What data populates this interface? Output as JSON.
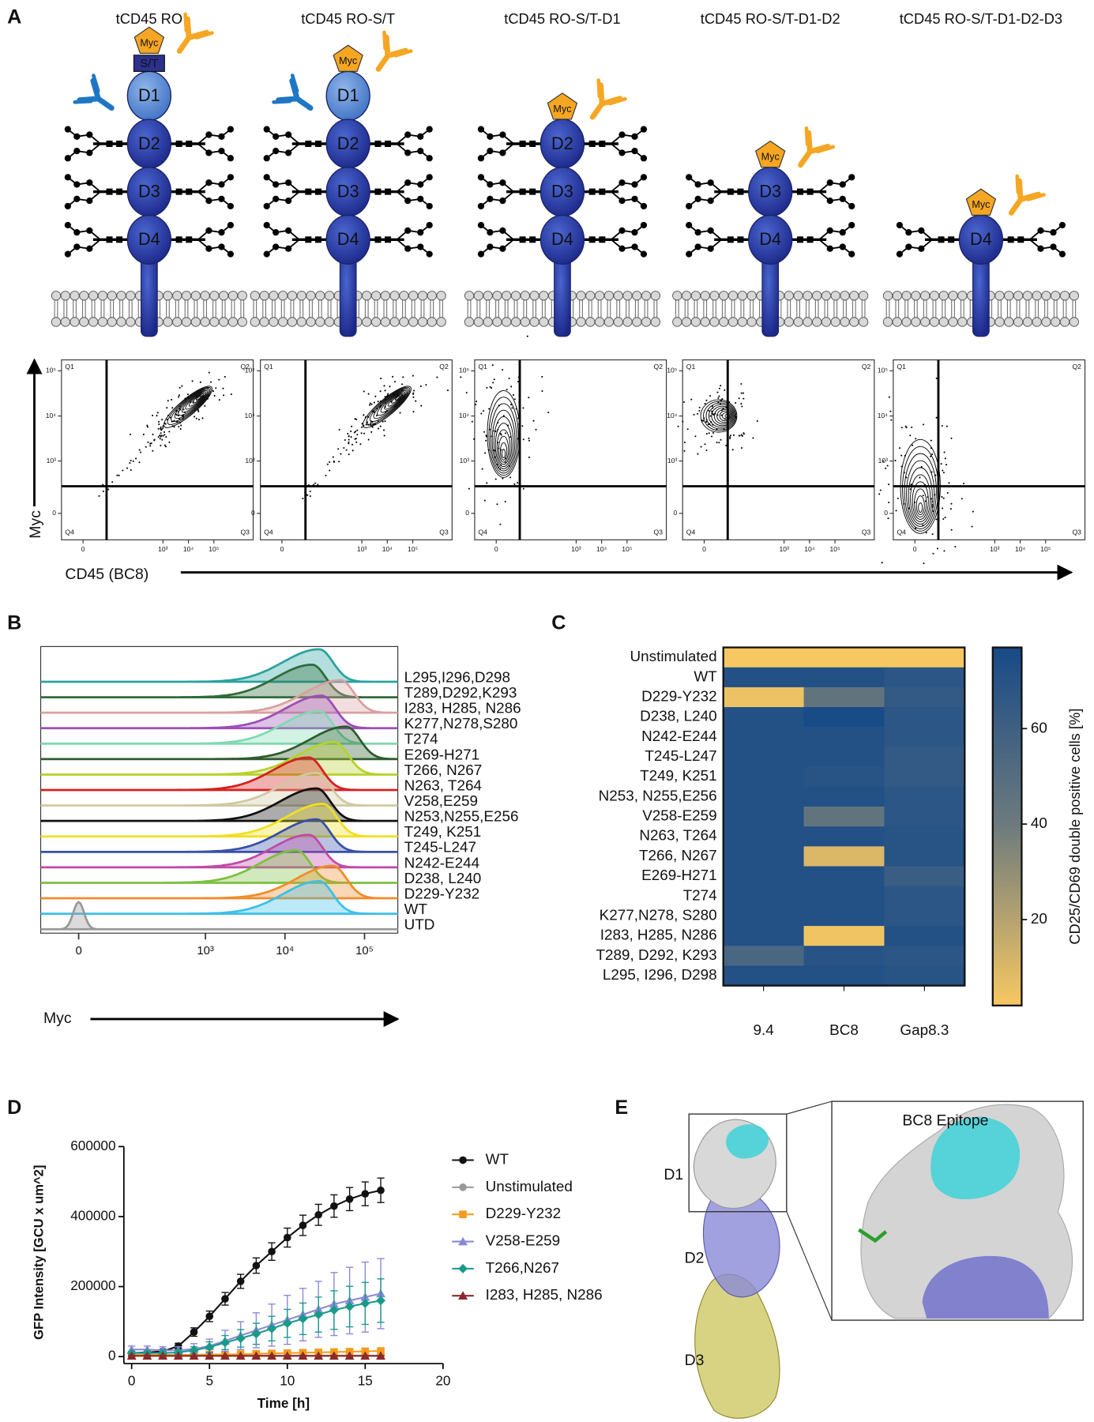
{
  "panel_labels": [
    "A",
    "B",
    "C",
    "D",
    "E"
  ],
  "panel_a": {
    "constructs": [
      {
        "title": "tCD45 RO",
        "tag": "Myc",
        "linker": "S/T",
        "domains": [
          "D1",
          "D2",
          "D3",
          "D4"
        ]
      },
      {
        "title": "tCD45 RO-S/T",
        "tag": "Myc",
        "domains": [
          "D1",
          "D2",
          "D3",
          "D4"
        ]
      },
      {
        "title": "tCD45 RO-S/T-D1",
        "tag": "Myc",
        "domains": [
          "D2",
          "D3",
          "D4"
        ]
      },
      {
        "title": "tCD45 RO-S/T-D1-D2",
        "tag": "Myc",
        "domains": [
          "D3",
          "D4"
        ]
      },
      {
        "title": "tCD45 RO-S/T-D1-D2-D3",
        "tag": "Myc",
        "domains": [
          "D4"
        ]
      }
    ],
    "flow": {
      "x_label": "CD45 (BC8)",
      "y_label": "Myc",
      "quadrants": [
        "Q1",
        "Q2",
        "Q3",
        "Q4"
      ],
      "xscale": "biexponential",
      "yscale": "biexponential",
      "xlim": [
        -5,
        3500000
      ],
      "ylim": [
        -250,
        175000
      ],
      "xticks": [
        0,
        {
          "value": 1000,
          "label": "10³"
        },
        {
          "value": 10000,
          "label": "10⁴"
        },
        {
          "value": 100000,
          "label": "10⁵"
        }
      ],
      "yticks": [
        0,
        {
          "value": 1000,
          "label": "10³"
        },
        {
          "value": 10000,
          "label": "10⁴"
        },
        {
          "value": 100000,
          "label": "10⁵"
        }
      ],
      "gate": {
        "x": 6,
        "y": 260
      }
    }
  },
  "chart_data": [
    {
      "type": "ridgeline",
      "x_label": "Myc",
      "xscale": "biexponential",
      "xlim": [
        -68,
        262144
      ],
      "xticks": [
        0,
        {
          "value": 1000,
          "label": "10³"
        },
        {
          "value": 10000,
          "label": "10⁴"
        },
        {
          "value": 100000,
          "label": "10⁵"
        }
      ],
      "series": [
        {
          "name": "L295,I296,D298",
          "color": "#2aa3a0",
          "mode": 27000
        },
        {
          "name": "T289,D292,K293",
          "color": "#2f6b3a",
          "mode": 22000
        },
        {
          "name": "I283, H285, N286",
          "color": "#d9a0a0",
          "mode": 50000
        },
        {
          "name": "K277,N278,S280",
          "color": "#9b4fb5",
          "mode": 29000
        },
        {
          "name": "T274",
          "color": "#7fd9b0",
          "mode": 27000
        },
        {
          "name": "E269-H271",
          "color": "#2e5c2e",
          "mode": 59000
        },
        {
          "name": "T266, N267",
          "color": "#b6d22a",
          "mode": 42000
        },
        {
          "name": "N263, T264",
          "color": "#d62020",
          "mode": 20000
        },
        {
          "name": "V258,E259",
          "color": "#cfc9a0",
          "mode": 25000
        },
        {
          "name": "N253,N255,E256",
          "color": "#111111",
          "mode": 25000
        },
        {
          "name": "T249, K251",
          "color": "#f0e020",
          "mode": 30000
        },
        {
          "name": "T245-L247",
          "color": "#3850a8",
          "mode": 25000
        },
        {
          "name": "N242-E244",
          "color": "#c04aa8",
          "mode": 20000
        },
        {
          "name": "D238, L240",
          "color": "#7cc040",
          "mode": 14000
        },
        {
          "name": "D229-Y232",
          "color": "#f08c2a",
          "mode": 40000
        },
        {
          "name": "WT",
          "color": "#3cc0e8",
          "mode": 27000
        },
        {
          "name": "UTD",
          "color": "#999999",
          "mode": 0
        }
      ]
    },
    {
      "type": "heatmap",
      "rows": [
        "Unstimulated",
        "WT",
        "D229-Y232",
        "D238, L240",
        "N242-E244",
        "T245-L247",
        "T249, K251",
        "N253, N255,E256",
        "V258-E259",
        "N263, T264",
        "T266, N267",
        "E269-H271",
        "T274",
        "K277,N278, S280",
        "I283, H285, N286",
        "T289, D292, K293",
        "L295, I296, D298"
      ],
      "columns": [
        "9.4",
        "BC8",
        "Gap8.3"
      ],
      "values": [
        [
          2,
          2,
          2
        ],
        [
          72,
          72,
          68
        ],
        [
          5,
          45,
          65
        ],
        [
          72,
          76,
          68
        ],
        [
          72,
          72,
          68
        ],
        [
          72,
          72,
          65
        ],
        [
          72,
          70,
          65
        ],
        [
          72,
          72,
          68
        ],
        [
          72,
          45,
          68
        ],
        [
          72,
          72,
          70
        ],
        [
          72,
          10,
          70
        ],
        [
          72,
          72,
          62
        ],
        [
          72,
          72,
          68
        ],
        [
          72,
          72,
          68
        ],
        [
          72,
          4,
          72
        ],
        [
          55,
          70,
          68
        ],
        [
          72,
          72,
          70
        ]
      ],
      "colorbar": {
        "label": "CD25/CD69 double positive cells [%]",
        "lim": [
          2,
          77
        ],
        "ticks": [
          20,
          40,
          60
        ]
      },
      "colors": [
        "#f7c862",
        "#6e7b7d",
        "#174a87"
      ]
    },
    {
      "type": "line",
      "x_label": "Time [h]",
      "y_label": "GFP Intensity [GCU x um^2]",
      "x": [
        0,
        1,
        2,
        3,
        4,
        5,
        6,
        7,
        8,
        9,
        10,
        11,
        12,
        13,
        14,
        15,
        16
      ],
      "xlim": [
        -0.5,
        20
      ],
      "xticks": [
        0,
        5,
        10,
        15,
        20
      ],
      "ylim": [
        -20000,
        600000
      ],
      "yticks": [
        0,
        200000,
        400000,
        600000
      ],
      "series": [
        {
          "name": "WT",
          "color": "#111111",
          "marker": "circle",
          "values": [
            10000,
            12000,
            15000,
            30000,
            70000,
            115000,
            165000,
            215000,
            260000,
            300000,
            340000,
            375000,
            405000,
            430000,
            450000,
            465000,
            475000
          ],
          "errors": [
            3000,
            4000,
            5000,
            8000,
            12000,
            15000,
            18000,
            20000,
            22000,
            25000,
            27000,
            29000,
            30000,
            32000,
            33000,
            34000,
            35000
          ]
        },
        {
          "name": "Unstimulated",
          "color": "#999999",
          "marker": "circle",
          "values": [
            3000,
            3000,
            3000,
            3000,
            3000,
            3000,
            3000,
            3000,
            3000,
            3000,
            3000,
            3000,
            3000,
            3000,
            3000,
            3000,
            3000
          ],
          "errors": [
            2000,
            2000,
            2000,
            2000,
            2000,
            2000,
            2000,
            2000,
            2000,
            2000,
            2000,
            2000,
            2000,
            2000,
            2000,
            2000,
            2000
          ]
        },
        {
          "name": "D229-Y232",
          "color": "#f39c1e",
          "marker": "square",
          "values": [
            5000,
            5000,
            5000,
            5000,
            5000,
            6000,
            6000,
            7000,
            8000,
            9000,
            10000,
            11000,
            12000,
            13000,
            14000,
            15000,
            16000
          ],
          "errors": [
            3000,
            3000,
            3000,
            3000,
            3000,
            4000,
            4000,
            5000,
            5000,
            6000,
            6000,
            7000,
            7000,
            8000,
            8000,
            9000,
            9000
          ]
        },
        {
          "name": "V258-E259",
          "color": "#8a88d8",
          "marker": "triangle",
          "values": [
            20000,
            20000,
            18000,
            18000,
            22000,
            30000,
            45000,
            60000,
            75000,
            90000,
            105000,
            120000,
            135000,
            150000,
            160000,
            170000,
            180000
          ],
          "errors": [
            10000,
            10000,
            10000,
            10000,
            15000,
            20000,
            30000,
            40000,
            50000,
            60000,
            70000,
            75000,
            80000,
            90000,
            95000,
            100000,
            100000
          ]
        },
        {
          "name": "T266,N267",
          "color": "#1a9a8a",
          "marker": "diamond",
          "values": [
            10000,
            10000,
            10000,
            12000,
            18000,
            27000,
            40000,
            52000,
            65000,
            80000,
            95000,
            108000,
            120000,
            133000,
            143000,
            152000,
            160000
          ],
          "errors": [
            5000,
            5000,
            5000,
            6000,
            10000,
            15000,
            20000,
            25000,
            30000,
            35000,
            40000,
            45000,
            50000,
            55000,
            58000,
            60000,
            62000
          ]
        },
        {
          "name": "I283, H285, N286",
          "color": "#8b2a2a",
          "marker": "triangle",
          "values": [
            2000,
            2000,
            2000,
            2000,
            2000,
            2000,
            2000,
            2000,
            2000,
            2000,
            2000,
            2000,
            2000,
            2000,
            2000,
            2000,
            2000
          ],
          "errors": [
            1000,
            1000,
            1000,
            1000,
            1000,
            1000,
            1000,
            1000,
            1000,
            1000,
            1000,
            1000,
            1000,
            1000,
            1000,
            1000,
            1000
          ]
        }
      ]
    }
  ],
  "panel_e": {
    "domains": [
      "D1",
      "D2",
      "D3"
    ],
    "inset_label": "BC8 Epitope"
  }
}
